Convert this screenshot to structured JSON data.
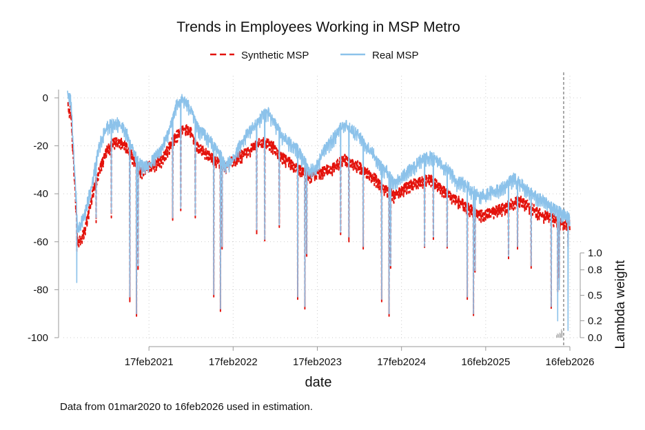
{
  "chart_data": {
    "type": "line",
    "title": "Trends in Employees Working in MSP Metro",
    "xlabel": "date",
    "ylabel": "",
    "y2label": "Lambda weight",
    "note": "Data from 01mar2020 to 16feb2026 used in estimation.",
    "legend": {
      "placement": "top-center",
      "entries": [
        "Synthetic MSP",
        "Real MSP"
      ]
    },
    "x_range": [
      "2020-03-01",
      "2026-02-16"
    ],
    "x_ticks": [
      {
        "date": "2021-02-17",
        "label": "17feb2021"
      },
      {
        "date": "2022-02-17",
        "label": "17feb2022"
      },
      {
        "date": "2023-02-17",
        "label": "17feb2023"
      },
      {
        "date": "2024-02-17",
        "label": "17feb2024"
      },
      {
        "date": "2025-02-16",
        "label": "16feb2025"
      },
      {
        "date": "2026-02-16",
        "label": "16feb2026"
      }
    ],
    "ylim": [
      -100,
      5
    ],
    "y_ticks": [
      "0",
      "-20",
      "-40",
      "-60",
      "-80",
      "-100"
    ],
    "y2lim": [
      0,
      1
    ],
    "y2_ticks": [
      "1.0",
      "0.8",
      "0.5",
      "0.2",
      "0.0"
    ],
    "y2_tick_values": [
      1.0,
      0.8,
      0.5,
      0.2,
      0.0
    ],
    "treatment_line_date": "2026-01-20",
    "grid": true,
    "monthly_start": "2020-03",
    "series": [
      {
        "name": "Synthetic MSP",
        "color": "#e3120b",
        "style": "dashed",
        "monthly": [
          -5,
          -60,
          -55,
          -40,
          -30,
          -22,
          -18,
          -18,
          -20,
          -25,
          -30,
          -28,
          -27,
          -25,
          -20,
          -15,
          -12,
          -13,
          -20,
          -22,
          -24,
          -26,
          -28,
          -25,
          -24,
          -22,
          -20,
          -18,
          -18,
          -20,
          -24,
          -26,
          -28,
          -30,
          -32,
          -31,
          -30,
          -29,
          -27,
          -25,
          -26,
          -28,
          -30,
          -32,
          -35,
          -38,
          -40,
          -38,
          -36,
          -35,
          -34,
          -33,
          -35,
          -38,
          -40,
          -42,
          -44,
          -46,
          -48,
          -48,
          -47,
          -46,
          -45,
          -43,
          -42,
          -44,
          -46,
          -48,
          -49,
          -50,
          -52,
          -52
        ]
      },
      {
        "name": "Real MSP",
        "color": "#8cc2ea",
        "style": "solid",
        "monthly": [
          0,
          -55,
          -48,
          -35,
          -20,
          -12,
          -10,
          -10,
          -15,
          -22,
          -28,
          -28,
          -24,
          -20,
          -14,
          -3,
          0,
          -4,
          -12,
          -15,
          -18,
          -22,
          -28,
          -25,
          -20,
          -15,
          -12,
          -8,
          -5,
          -10,
          -15,
          -18,
          -20,
          -25,
          -30,
          -28,
          -22,
          -18,
          -14,
          -10,
          -13,
          -15,
          -20,
          -22,
          -28,
          -30,
          -35,
          -33,
          -30,
          -28,
          -25,
          -24,
          -25,
          -28,
          -30,
          -35,
          -35,
          -38,
          -40,
          -40,
          -38,
          -38,
          -36,
          -33,
          -35,
          -38,
          -40,
          -42,
          -44,
          -46,
          -48,
          -50
        ]
      }
    ],
    "dips": [
      [
        "2020-04-10",
        -77,
        -64
      ],
      [
        "2020-07-03",
        -50,
        -52
      ],
      [
        "2020-09-07",
        -48,
        -50
      ],
      [
        "2020-11-26",
        -83,
        -85
      ],
      [
        "2020-12-25",
        -90,
        -91
      ],
      [
        "2021-01-01",
        -70,
        -72
      ],
      [
        "2021-05-31",
        -50,
        -51
      ],
      [
        "2021-07-05",
        -46,
        -47
      ],
      [
        "2021-09-06",
        -49,
        -50
      ],
      [
        "2021-11-25",
        -82,
        -83
      ],
      [
        "2021-12-24",
        -88,
        -89
      ],
      [
        "2021-12-31",
        -62,
        -63
      ],
      [
        "2022-05-30",
        -55,
        -57
      ],
      [
        "2022-07-04",
        -59,
        -60
      ],
      [
        "2022-09-05",
        -53,
        -54
      ],
      [
        "2022-11-24",
        -83,
        -84
      ],
      [
        "2022-12-25",
        -87,
        -88
      ],
      [
        "2023-01-02",
        -65,
        -66
      ],
      [
        "2023-05-29",
        -56,
        -57
      ],
      [
        "2023-07-04",
        -58,
        -60
      ],
      [
        "2023-09-04",
        -62,
        -63
      ],
      [
        "2023-11-23",
        -84,
        -85
      ],
      [
        "2023-12-25",
        -90,
        -91
      ],
      [
        "2024-01-01",
        -70,
        -71
      ],
      [
        "2024-05-27",
        -62,
        -63
      ],
      [
        "2024-07-04",
        -58,
        -59
      ],
      [
        "2024-09-02",
        -62,
        -63
      ],
      [
        "2024-11-28",
        -83,
        -84
      ],
      [
        "2024-12-25",
        -90,
        -91
      ],
      [
        "2025-01-01",
        -72,
        -73
      ],
      [
        "2025-05-26",
        -66,
        -67
      ],
      [
        "2025-07-04",
        -62,
        -63
      ],
      [
        "2025-09-01",
        -70,
        -71
      ],
      [
        "2025-11-27",
        -87,
        -88
      ],
      [
        "2025-12-25",
        -93,
        -81
      ],
      [
        "2026-01-01",
        -80,
        -75
      ],
      [
        "2026-02-08",
        -97,
        -62
      ]
    ],
    "lambda_weights": [
      [
        "2025-12-20",
        0.03
      ],
      [
        "2025-12-24",
        0.05
      ],
      [
        "2025-12-28",
        0.04
      ],
      [
        "2026-01-02",
        0.06
      ],
      [
        "2026-01-06",
        0.05
      ],
      [
        "2026-01-10",
        0.1
      ],
      [
        "2026-01-14",
        0.08
      ]
    ]
  }
}
